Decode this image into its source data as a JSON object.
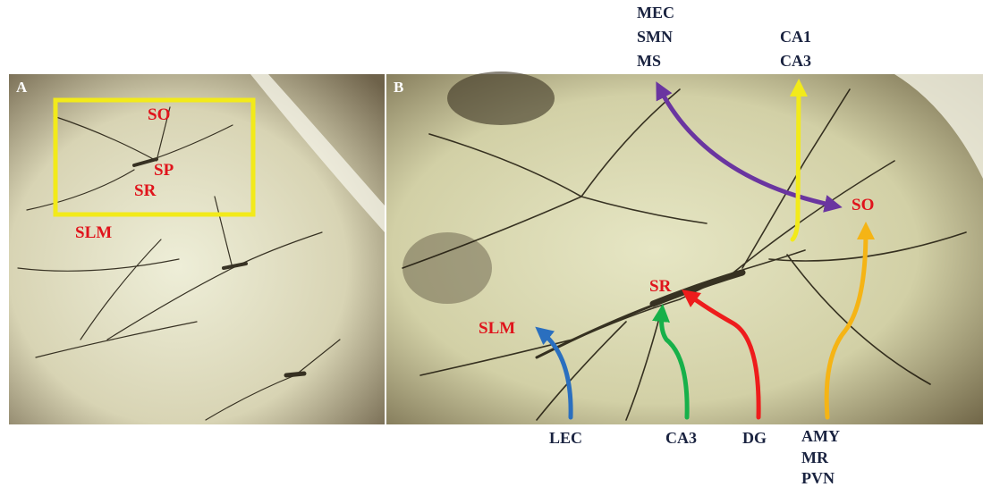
{
  "panel_a": {
    "label": "A",
    "layers": [
      "SO",
      "SP",
      "SR",
      "SLM"
    ]
  },
  "panel_b": {
    "label": "B",
    "layers": [
      "SO",
      "SR",
      "SLM"
    ],
    "inputs": [
      {
        "lines": [
          "MEC",
          "SMN",
          "MS"
        ]
      },
      {
        "lines": [
          "CA1",
          "CA3"
        ]
      },
      {
        "lines": [
          "LEC"
        ]
      },
      {
        "lines": [
          "CA3"
        ]
      },
      {
        "lines": [
          "DG"
        ]
      },
      {
        "lines": [
          "AMY",
          "MR",
          "PVN"
        ]
      }
    ]
  }
}
